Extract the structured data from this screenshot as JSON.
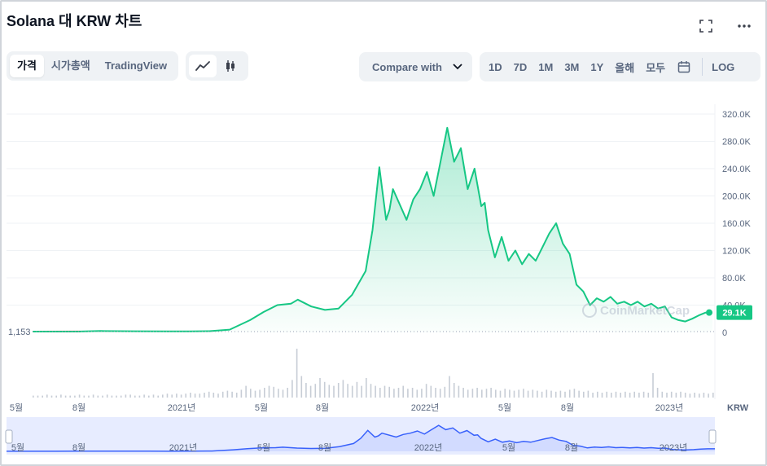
{
  "header": {
    "title": "Solana 대 KRW 차트"
  },
  "tabs": [
    {
      "label": "가격",
      "active": true
    },
    {
      "label": "시가총액",
      "active": false
    },
    {
      "label": "TradingView",
      "active": false
    }
  ],
  "chart_type_toggle": [
    "line-chart-icon",
    "candlestick-icon"
  ],
  "compare": {
    "label": "Compare with"
  },
  "ranges": [
    "1D",
    "7D",
    "1M",
    "3M",
    "1Y",
    "올해",
    "모두"
  ],
  "log_label": "LOG",
  "watermark": "CoinMarketCap",
  "colors": {
    "up": "#16c784",
    "down": "#ea3943",
    "navigator": "#3861fb",
    "fill": "#16c784"
  },
  "chart_data": {
    "type": "area",
    "currency": "KRW",
    "y_ticks": [
      "0",
      "40.0K",
      "80.0K",
      "120.0K",
      "160.0K",
      "200.0K",
      "240.0K",
      "280.0K",
      "320.0K"
    ],
    "ylim": [
      0,
      320000
    ],
    "baseline_label": "1,153",
    "current_price_label": "29.1K",
    "x_ticks": [
      "5월",
      "8월",
      "2021년",
      "5월",
      "8월",
      "2022년",
      "5월",
      "8월",
      "2023년"
    ],
    "x_unit_label": "KRW",
    "navigator_ticks": [
      "5월",
      "8월",
      "2021년",
      "5월",
      "8월",
      "2022년",
      "5월",
      "8월",
      "2023년"
    ],
    "series": [
      {
        "x": [
          0.0,
          0.07,
          0.1,
          0.15,
          0.2,
          0.23,
          0.26,
          0.29,
          0.32,
          0.34,
          0.36,
          0.38,
          0.39,
          0.41,
          0.43,
          0.45,
          0.47,
          0.49,
          0.5,
          0.51,
          0.52,
          0.525,
          0.53,
          0.55,
          0.56,
          0.57,
          0.58,
          0.59,
          0.6,
          0.61,
          0.62,
          0.63,
          0.64,
          0.65,
          0.66,
          0.665,
          0.67,
          0.68,
          0.69,
          0.7,
          0.71,
          0.72,
          0.73,
          0.74,
          0.75,
          0.76,
          0.77,
          0.78,
          0.79,
          0.8,
          0.81,
          0.82,
          0.83,
          0.84,
          0.85,
          0.86,
          0.87,
          0.88,
          0.89,
          0.9,
          0.91,
          0.92,
          0.93,
          0.94,
          0.95,
          0.96,
          0.97,
          0.98,
          0.99,
          1.0
        ],
        "values": [
          1153,
          1300,
          2000,
          1700,
          1500,
          1400,
          1800,
          4000,
          18000,
          30000,
          40000,
          42000,
          48000,
          38000,
          33000,
          35000,
          55000,
          90000,
          150000,
          242000,
          165000,
          180000,
          210000,
          165000,
          195000,
          210000,
          235000,
          200000,
          250000,
          300000,
          250000,
          270000,
          210000,
          240000,
          185000,
          190000,
          150000,
          110000,
          140000,
          105000,
          120000,
          100000,
          115000,
          105000,
          125000,
          145000,
          160000,
          130000,
          115000,
          70000,
          60000,
          40000,
          50000,
          45000,
          52000,
          42000,
          45000,
          40000,
          45000,
          38000,
          42000,
          35000,
          38000,
          22000,
          18000,
          16000,
          20000,
          25000,
          29000,
          29100
        ]
      }
    ],
    "volume": [
      2,
      2,
      2,
      3,
      2,
      2,
      3,
      2,
      2,
      2,
      3,
      2,
      2,
      3,
      2,
      2,
      3,
      2,
      2,
      2,
      3,
      3,
      2,
      2,
      3,
      2,
      3,
      2,
      3,
      4,
      3,
      4,
      3,
      4,
      5,
      4,
      4,
      5,
      6,
      5,
      4,
      6,
      7,
      6,
      5,
      8,
      12,
      9,
      7,
      8,
      10,
      12,
      11,
      9,
      8,
      10,
      18,
      50,
      22,
      15,
      12,
      14,
      20,
      16,
      13,
      12,
      15,
      18,
      14,
      12,
      16,
      12,
      20,
      14,
      12,
      10,
      12,
      11,
      9,
      10,
      12,
      9,
      10,
      8,
      9,
      14,
      12,
      10,
      9,
      11,
      22,
      15,
      12,
      10,
      8,
      9,
      10,
      8,
      9,
      10,
      8,
      7,
      9,
      8,
      7,
      8,
      9,
      7,
      8,
      7,
      6,
      8,
      7,
      6,
      7,
      6,
      8,
      9,
      7,
      6,
      7,
      5,
      6,
      5,
      6,
      5,
      6,
      5,
      6,
      5,
      6,
      5,
      6,
      5,
      25,
      10,
      6,
      5,
      6,
      5,
      6,
      5,
      4,
      5,
      4,
      5,
      4,
      5
    ]
  }
}
